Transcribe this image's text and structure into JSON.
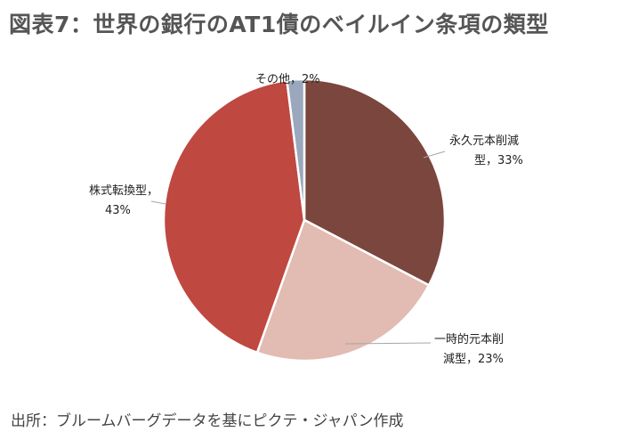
{
  "title": "図表7：世界の銀行のAT1債のベイルイン条項の類型",
  "source": "出所：ブルームバーグデータを基にピクテ・ジャパン作成",
  "chart_data": {
    "type": "pie",
    "title": "図表7：世界の銀行のAT1債のベイルイン条項の類型",
    "start_angle_deg": 0,
    "direction": "clockwise",
    "slices": [
      {
        "label": "永久元本削減型",
        "value": 33,
        "display_lines": [
          "永久元本削減",
          "型，33%"
        ],
        "color": "#7b463d"
      },
      {
        "label": "一時的元本削減型",
        "value": 23,
        "display_lines": [
          "一時的元本削",
          "減型，23%"
        ],
        "color": "#e2bbb2"
      },
      {
        "label": "株式転換型",
        "value": 43,
        "display_lines": [
          "株式転換型，",
          "43%"
        ],
        "color": "#bf4840"
      },
      {
        "label": "その他",
        "value": 2,
        "display_lines": [
          "その他，2%"
        ],
        "color": "#9aa7bd"
      }
    ]
  }
}
